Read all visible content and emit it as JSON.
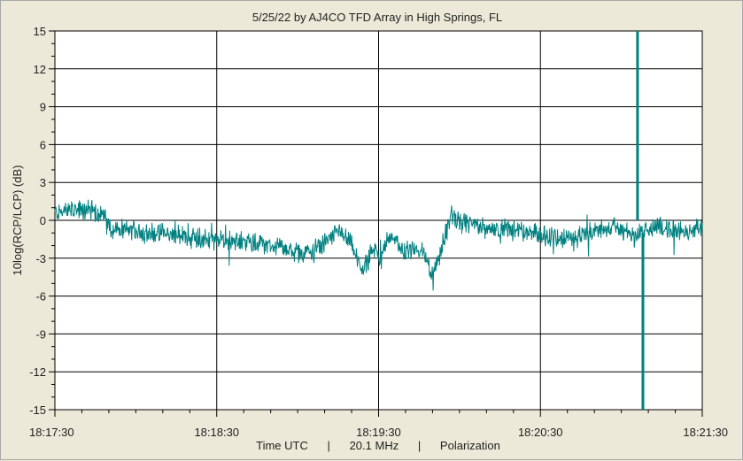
{
  "chart_data": {
    "type": "line",
    "title": "5/25/22  by  AJ4CO TFD Array  in  High Springs, FL",
    "ylabel": "10log(RCP/LCP) (dB)",
    "xlabel": "Time UTC      |      20.1 MHz      |      Polarization",
    "ylim": [
      -15,
      15
    ],
    "xlim_seconds": [
      0,
      240
    ],
    "y_ticks": [
      "15",
      "12",
      "9",
      "6",
      "3",
      "0",
      "-3",
      "-6",
      "-9",
      "-12",
      "-15"
    ],
    "x_ticks": [
      "18:17:30",
      "18:18:30",
      "18:19:30",
      "18:20:30",
      "18:21:30"
    ],
    "grid": true,
    "colors": {
      "series": "#008080",
      "grid": "#000000",
      "plot_bg": "#ffffff",
      "frame_bg": "#ece9d8"
    },
    "series": [
      {
        "x_time": [
          "18:17:30",
          "18:17:37",
          "18:17:40",
          "18:17:44",
          "18:17:48",
          "18:17:51",
          "18:17:58",
          "18:18:06",
          "18:18:14",
          "18:18:22",
          "18:18:30",
          "18:18:38",
          "18:18:46",
          "18:18:54",
          "18:19:02",
          "18:19:08",
          "18:19:12",
          "18:19:16",
          "18:19:20",
          "18:19:24",
          "18:19:28",
          "18:19:30",
          "18:19:34",
          "18:19:40",
          "18:19:46",
          "18:19:50",
          "18:19:54",
          "18:19:57",
          "18:20:00",
          "18:20:06",
          "18:20:10",
          "18:20:16",
          "18:20:22",
          "18:20:30",
          "18:20:40",
          "18:20:48",
          "18:20:56",
          "18:21:02",
          "18:21:05",
          "18:21:06",
          "18:21:08",
          "18:21:10",
          "18:21:14",
          "18:21:20",
          "18:21:30"
        ],
        "values": [
          0.6,
          0.8,
          0.7,
          0.9,
          0.2,
          -0.7,
          -0.8,
          -1.0,
          -1.2,
          -1.3,
          -1.6,
          -1.7,
          -1.8,
          -2.2,
          -2.7,
          -2.2,
          -1.4,
          -0.9,
          -2.0,
          -4.0,
          -2.3,
          -2.8,
          -1.3,
          -2.4,
          -2.2,
          -4.5,
          -1.8,
          0.4,
          -0.2,
          -0.4,
          -0.7,
          -0.6,
          -0.9,
          -1.1,
          -1.5,
          -1.0,
          -0.5,
          -0.9,
          -1.1,
          15,
          -15,
          -0.8,
          -0.5,
          -0.8,
          -0.6
        ]
      }
    ]
  }
}
